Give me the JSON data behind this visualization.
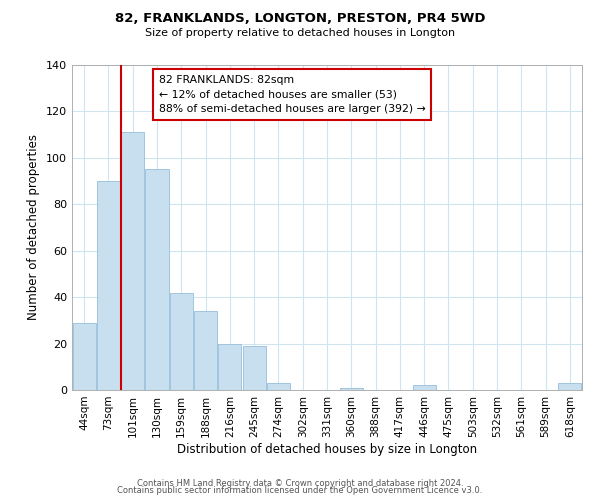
{
  "title": "82, FRANKLANDS, LONGTON, PRESTON, PR4 5WD",
  "subtitle": "Size of property relative to detached houses in Longton",
  "xlabel": "Distribution of detached houses by size in Longton",
  "ylabel": "Number of detached properties",
  "bar_labels": [
    "44sqm",
    "73sqm",
    "101sqm",
    "130sqm",
    "159sqm",
    "188sqm",
    "216sqm",
    "245sqm",
    "274sqm",
    "302sqm",
    "331sqm",
    "360sqm",
    "388sqm",
    "417sqm",
    "446sqm",
    "475sqm",
    "503sqm",
    "532sqm",
    "561sqm",
    "589sqm",
    "618sqm"
  ],
  "bar_values": [
    29,
    90,
    111,
    95,
    42,
    34,
    20,
    19,
    3,
    0,
    0,
    1,
    0,
    0,
    2,
    0,
    0,
    0,
    0,
    0,
    3
  ],
  "bar_color": "#c8dff0",
  "bar_edge_color": "#a0c4e0",
  "vline_x": 1.5,
  "vline_color": "#cc0000",
  "ylim": [
    0,
    140
  ],
  "yticks": [
    0,
    20,
    40,
    60,
    80,
    100,
    120,
    140
  ],
  "annotation_title": "82 FRANKLANDS: 82sqm",
  "annotation_line1": "← 12% of detached houses are smaller (53)",
  "annotation_line2": "88% of semi-detached houses are larger (392) →",
  "annotation_box_color": "#ffffff",
  "annotation_box_edge": "#cc0000",
  "footer_line1": "Contains HM Land Registry data © Crown copyright and database right 2024.",
  "footer_line2": "Contains public sector information licensed under the Open Government Licence v3.0.",
  "background_color": "#ffffff",
  "grid_color": "#d0e4f0"
}
